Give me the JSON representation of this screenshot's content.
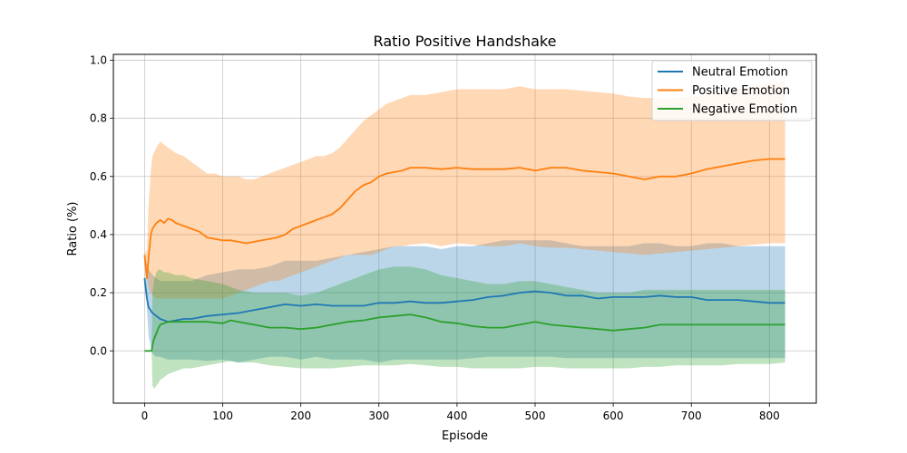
{
  "chart_data": {
    "type": "line",
    "title": "Ratio Positive Handshake",
    "xlabel": "Episode",
    "ylabel": "Ratio (%)",
    "xlim": [
      -40,
      860
    ],
    "ylim": [
      -0.18,
      1.02
    ],
    "xticks": [
      0,
      100,
      200,
      300,
      400,
      500,
      600,
      700,
      800
    ],
    "yticks": [
      0.0,
      0.2,
      0.4,
      0.6,
      0.8,
      1.0
    ],
    "xtick_labels": [
      "0",
      "100",
      "200",
      "300",
      "400",
      "500",
      "600",
      "700",
      "800"
    ],
    "ytick_labels": [
      "0.0",
      "0.2",
      "0.4",
      "0.6",
      "0.8",
      "1.0"
    ],
    "grid": true,
    "legend_position": "top-right",
    "series": [
      {
        "name": "Neutral Emotion",
        "color": "#1f77b4",
        "x": [
          0,
          3,
          5,
          10,
          15,
          20,
          30,
          40,
          50,
          60,
          80,
          100,
          120,
          140,
          160,
          180,
          200,
          220,
          240,
          260,
          280,
          300,
          320,
          340,
          360,
          380,
          400,
          420,
          440,
          460,
          480,
          500,
          520,
          540,
          560,
          580,
          600,
          620,
          640,
          660,
          680,
          700,
          720,
          740,
          760,
          780,
          800,
          820
        ],
        "y": [
          0.25,
          0.18,
          0.15,
          0.13,
          0.12,
          0.11,
          0.1,
          0.105,
          0.11,
          0.11,
          0.12,
          0.125,
          0.13,
          0.14,
          0.15,
          0.16,
          0.155,
          0.16,
          0.155,
          0.155,
          0.155,
          0.165,
          0.165,
          0.17,
          0.165,
          0.165,
          0.17,
          0.175,
          0.185,
          0.19,
          0.2,
          0.205,
          0.2,
          0.19,
          0.19,
          0.18,
          0.185,
          0.185,
          0.185,
          0.19,
          0.185,
          0.185,
          0.175,
          0.175,
          0.175,
          0.17,
          0.165,
          0.165
        ],
        "lower": [
          0.33,
          0.15,
          0.05,
          -0.01,
          -0.02,
          -0.02,
          -0.03,
          -0.03,
          -0.03,
          -0.03,
          -0.035,
          -0.03,
          -0.04,
          -0.03,
          -0.02,
          -0.02,
          -0.03,
          -0.02,
          -0.03,
          -0.03,
          -0.03,
          -0.04,
          -0.03,
          -0.03,
          -0.03,
          -0.03,
          -0.03,
          -0.025,
          -0.02,
          -0.02,
          -0.02,
          -0.02,
          -0.02,
          -0.025,
          -0.025,
          -0.025,
          -0.025,
          -0.025,
          -0.025,
          -0.025,
          -0.025,
          -0.025,
          -0.025,
          -0.025,
          -0.025,
          -0.025,
          -0.025,
          -0.025
        ],
        "upper": [
          0.33,
          0.3,
          0.28,
          0.26,
          0.25,
          0.24,
          0.24,
          0.24,
          0.24,
          0.24,
          0.26,
          0.27,
          0.28,
          0.28,
          0.29,
          0.31,
          0.31,
          0.31,
          0.32,
          0.33,
          0.34,
          0.35,
          0.36,
          0.36,
          0.36,
          0.35,
          0.36,
          0.36,
          0.37,
          0.38,
          0.38,
          0.38,
          0.38,
          0.37,
          0.36,
          0.36,
          0.36,
          0.36,
          0.37,
          0.37,
          0.36,
          0.36,
          0.37,
          0.37,
          0.36,
          0.36,
          0.36,
          0.36
        ]
      },
      {
        "name": "Positive Emotion",
        "color": "#ff7f0e",
        "x": [
          0,
          3,
          5,
          8,
          10,
          15,
          20,
          25,
          30,
          35,
          40,
          50,
          60,
          70,
          80,
          90,
          100,
          110,
          120,
          130,
          140,
          150,
          160,
          170,
          180,
          190,
          200,
          210,
          220,
          230,
          240,
          250,
          260,
          270,
          280,
          290,
          300,
          310,
          320,
          330,
          340,
          360,
          380,
          400,
          420,
          440,
          460,
          480,
          500,
          520,
          540,
          560,
          580,
          600,
          620,
          640,
          660,
          680,
          700,
          720,
          740,
          760,
          780,
          800,
          820
        ],
        "y": [
          0.33,
          0.25,
          0.32,
          0.4,
          0.42,
          0.44,
          0.45,
          0.44,
          0.455,
          0.45,
          0.44,
          0.43,
          0.42,
          0.41,
          0.39,
          0.385,
          0.38,
          0.38,
          0.375,
          0.37,
          0.375,
          0.38,
          0.385,
          0.39,
          0.4,
          0.42,
          0.43,
          0.44,
          0.45,
          0.46,
          0.47,
          0.49,
          0.52,
          0.55,
          0.57,
          0.58,
          0.6,
          0.61,
          0.615,
          0.62,
          0.63,
          0.63,
          0.625,
          0.63,
          0.625,
          0.625,
          0.625,
          0.63,
          0.62,
          0.63,
          0.63,
          0.62,
          0.615,
          0.61,
          0.6,
          0.59,
          0.6,
          0.6,
          0.61,
          0.625,
          0.635,
          0.645,
          0.655,
          0.66,
          0.66
        ],
        "lower": [
          0.33,
          0.25,
          0.22,
          0.2,
          0.19,
          0.18,
          0.18,
          0.18,
          0.18,
          0.18,
          0.18,
          0.18,
          0.18,
          0.18,
          0.18,
          0.18,
          0.18,
          0.19,
          0.2,
          0.21,
          0.22,
          0.23,
          0.24,
          0.24,
          0.25,
          0.26,
          0.27,
          0.28,
          0.29,
          0.3,
          0.31,
          0.32,
          0.33,
          0.33,
          0.33,
          0.33,
          0.34,
          0.35,
          0.36,
          0.36,
          0.365,
          0.37,
          0.36,
          0.37,
          0.365,
          0.36,
          0.36,
          0.37,
          0.36,
          0.355,
          0.355,
          0.35,
          0.345,
          0.34,
          0.335,
          0.33,
          0.335,
          0.34,
          0.345,
          0.35,
          0.355,
          0.36,
          0.365,
          0.37,
          0.37
        ],
        "upper": [
          0.33,
          0.35,
          0.5,
          0.62,
          0.67,
          0.7,
          0.72,
          0.71,
          0.7,
          0.69,
          0.68,
          0.67,
          0.65,
          0.63,
          0.61,
          0.61,
          0.6,
          0.6,
          0.6,
          0.59,
          0.59,
          0.6,
          0.61,
          0.62,
          0.63,
          0.64,
          0.65,
          0.66,
          0.67,
          0.67,
          0.68,
          0.7,
          0.73,
          0.76,
          0.79,
          0.81,
          0.83,
          0.85,
          0.86,
          0.87,
          0.88,
          0.88,
          0.89,
          0.9,
          0.9,
          0.9,
          0.9,
          0.91,
          0.9,
          0.9,
          0.9,
          0.895,
          0.89,
          0.885,
          0.875,
          0.87,
          0.87,
          0.87,
          0.875,
          0.88,
          0.89,
          0.9,
          0.91,
          0.92,
          0.93
        ]
      },
      {
        "name": "Negative Emotion",
        "color": "#2ca02c",
        "x": [
          0,
          5,
          9,
          10,
          12,
          15,
          18,
          20,
          25,
          30,
          40,
          50,
          60,
          80,
          100,
          110,
          120,
          140,
          160,
          180,
          200,
          220,
          240,
          260,
          280,
          300,
          320,
          340,
          360,
          380,
          400,
          420,
          440,
          460,
          480,
          500,
          520,
          540,
          560,
          580,
          600,
          620,
          640,
          660,
          680,
          700,
          720,
          740,
          760,
          780,
          800,
          820
        ],
        "y": [
          0.0,
          0.0,
          0.0,
          0.02,
          0.04,
          0.06,
          0.08,
          0.09,
          0.095,
          0.1,
          0.1,
          0.1,
          0.1,
          0.1,
          0.095,
          0.105,
          0.1,
          0.09,
          0.08,
          0.08,
          0.075,
          0.08,
          0.09,
          0.1,
          0.105,
          0.115,
          0.12,
          0.125,
          0.115,
          0.1,
          0.095,
          0.085,
          0.08,
          0.08,
          0.09,
          0.1,
          0.09,
          0.085,
          0.08,
          0.075,
          0.07,
          0.075,
          0.08,
          0.09,
          0.09,
          0.09,
          0.09,
          0.09,
          0.09,
          0.09,
          0.09,
          0.09
        ],
        "lower": [
          0.0,
          0.0,
          0.0,
          -0.12,
          -0.13,
          -0.12,
          -0.11,
          -0.1,
          -0.09,
          -0.08,
          -0.07,
          -0.06,
          -0.06,
          -0.05,
          -0.04,
          -0.035,
          -0.04,
          -0.04,
          -0.05,
          -0.055,
          -0.06,
          -0.06,
          -0.06,
          -0.055,
          -0.05,
          -0.05,
          -0.05,
          -0.045,
          -0.05,
          -0.055,
          -0.055,
          -0.06,
          -0.06,
          -0.06,
          -0.06,
          -0.055,
          -0.055,
          -0.06,
          -0.06,
          -0.06,
          -0.06,
          -0.06,
          -0.055,
          -0.055,
          -0.05,
          -0.05,
          -0.05,
          -0.05,
          -0.045,
          -0.045,
          -0.045,
          -0.04
        ],
        "upper": [
          0.0,
          0.0,
          0.0,
          0.2,
          0.24,
          0.27,
          0.28,
          0.28,
          0.27,
          0.27,
          0.26,
          0.26,
          0.25,
          0.24,
          0.23,
          0.22,
          0.21,
          0.2,
          0.2,
          0.2,
          0.19,
          0.2,
          0.22,
          0.24,
          0.26,
          0.28,
          0.29,
          0.29,
          0.28,
          0.26,
          0.25,
          0.24,
          0.23,
          0.23,
          0.24,
          0.24,
          0.23,
          0.22,
          0.21,
          0.2,
          0.2,
          0.2,
          0.21,
          0.21,
          0.21,
          0.21,
          0.21,
          0.21,
          0.21,
          0.21,
          0.21,
          0.21
        ]
      }
    ]
  }
}
